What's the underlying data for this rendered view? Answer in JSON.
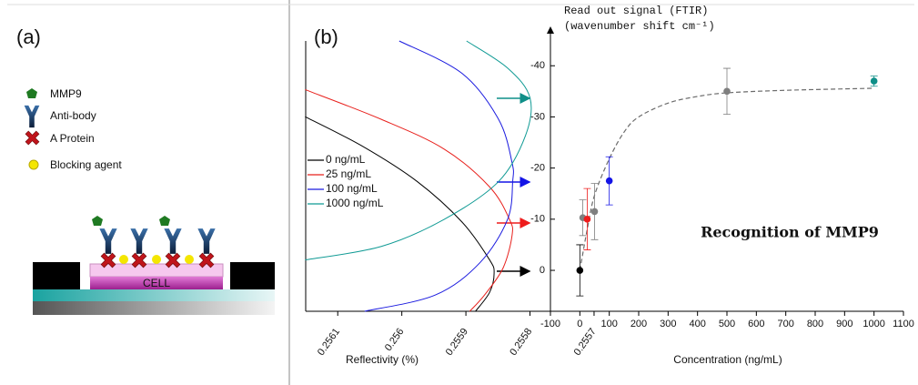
{
  "panel_a": {
    "label": "(a)",
    "legend": [
      "MMP9",
      "Anti-body",
      "A Protein",
      "Blocking agent"
    ],
    "cell_label": "CELL"
  },
  "panel_b_label": "(b)",
  "chart_data": [
    {
      "type": "line",
      "x_label": "Reflectivity (%)",
      "xlim": [
        0.25615,
        0.25569
      ],
      "xticks": [
        0.2561,
        0.256,
        0.2559,
        0.2558,
        0.2557
      ],
      "ylim": [
        0,
        100
      ],
      "series": [
        {
          "name": "0 ng/mL",
          "color": "#000000",
          "x": [
            0.256151,
            0.256061,
            0.255976,
            0.255906,
            0.255863,
            0.255856,
            0.255863,
            0.255885
          ],
          "values": [
            72,
            61,
            48,
            33,
            19,
            14,
            7,
            0
          ]
        },
        {
          "name": "25 ng/mL",
          "color": "#e8201c",
          "x": [
            0.256151,
            0.256032,
            0.255934,
            0.255863,
            0.255832,
            0.255828,
            0.255842,
            0.255871,
            0.255894
          ],
          "values": [
            82,
            71,
            60,
            46,
            34,
            28,
            16,
            6,
            0
          ]
        },
        {
          "name": "100 ng/mL",
          "color": "#1a1adf",
          "x": [
            0.256004,
            0.255906,
            0.255849,
            0.255828,
            0.255827,
            0.255835,
            0.255878,
            0.255948,
            0.256058
          ],
          "values": [
            100,
            88,
            71,
            55,
            48,
            34,
            18,
            6,
            0
          ]
        },
        {
          "name": "1000  ng/mL",
          "color": "#0f9a94",
          "x": [
            0.255899,
            0.255835,
            0.2558,
            0.255807,
            0.255849,
            0.255934,
            0.256032,
            0.256151
          ],
          "values": [
            100,
            90,
            79,
            65,
            48,
            34,
            24,
            19
          ]
        }
      ]
    },
    {
      "type": "scatter",
      "y_label": [
        "Read out signal (FTIR)",
        "(wavenumber shift cm⁻¹)"
      ],
      "x_label": "Concentration (ng/mL)",
      "annotation": "Recognition of MMP9",
      "xlim": [
        -100,
        1100
      ],
      "xticks": [
        -100,
        0,
        100,
        200,
        300,
        400,
        500,
        600,
        700,
        800,
        900,
        1000,
        1100
      ],
      "ylim": [
        8,
        -42
      ],
      "yticks": [
        0,
        -10,
        -20,
        -30,
        -40
      ],
      "points": {
        "x": [
          0,
          10,
          25,
          50,
          100,
          500,
          1000
        ],
        "values": [
          0,
          -10.3,
          -10,
          -11.5,
          -17.5,
          -35,
          -37
        ],
        "errors": [
          5,
          3.5,
          6,
          5.5,
          4.7,
          4.5,
          1
        ],
        "colors": [
          "#000000",
          "#7f7f7f",
          "#ee1c1c",
          "#7f7f7f",
          "#1414e6",
          "#7f7f7f",
          "#0f8f88"
        ]
      },
      "fit_curve": {
        "color": "#6b6b6b",
        "x": [
          0,
          25,
          50,
          100,
          150,
          200,
          300,
          400,
          500,
          700,
          1000
        ],
        "values": [
          0,
          -8,
          -14.7,
          -21.8,
          -27,
          -30,
          -32.7,
          -34,
          -34.7,
          -35.2,
          -35.6
        ]
      }
    }
  ]
}
